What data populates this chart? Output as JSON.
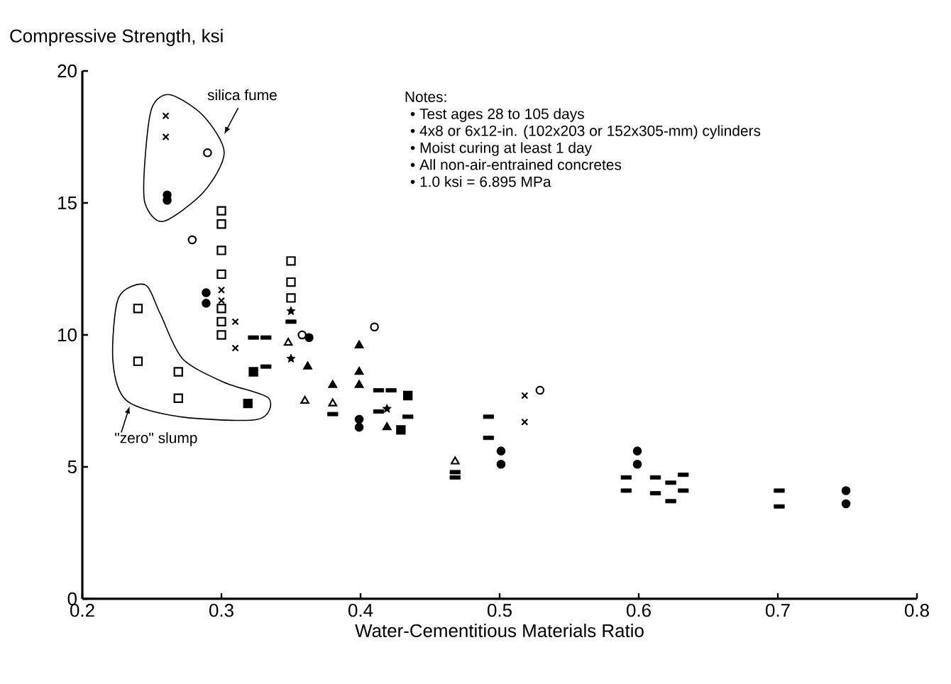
{
  "chart_data": {
    "type": "scatter",
    "xlabel": "Water-Cementitious Materials Ratio",
    "ylabel": "Compressive Strength, ksi",
    "xlim": [
      0.2,
      0.8
    ],
    "xticks": [
      0.2,
      0.3,
      0.4,
      0.5,
      0.6,
      0.7,
      0.8
    ],
    "ylim": [
      0,
      20
    ],
    "yticks": [
      0,
      5,
      10,
      15,
      20
    ],
    "annotations": [
      "silica fume",
      "\"zero\" slump",
      "Notes:",
      "• Test ages 28 to 105 days",
      "• 4x8 or 6x12-in. (102x203 or 152x305-mm) cylinders",
      "• Moist curing at least 1 day",
      "• All non-air-entrained concretes",
      "• 1.0 ksi = 6.895 MPa"
    ],
    "series": [
      {
        "marker": "circle",
        "color": "#000000",
        "x": [
          0.261,
          0.261,
          0.289,
          0.289,
          0.363,
          0.399,
          0.399,
          0.501,
          0.501,
          0.599,
          0.599,
          0.749,
          0.749
        ],
        "values": [
          15.1,
          15.3,
          11.6,
          11.2,
          9.9,
          6.8,
          6.5,
          5.6,
          5.1,
          5.6,
          5.1,
          4.1,
          3.6
        ]
      },
      {
        "marker": "circle",
        "color": "#000000",
        "x": [
          0.29,
          0.279,
          0.358,
          0.41,
          0.529
        ],
        "values": [
          16.9,
          13.6,
          10.0,
          10.3,
          7.9
        ]
      },
      {
        "marker": "square",
        "color": "#000000",
        "x": [
          0.3,
          0.3,
          0.3,
          0.3,
          0.3,
          0.3,
          0.3,
          0.35,
          0.35,
          0.35,
          0.24,
          0.24,
          0.269,
          0.269
        ],
        "values": [
          14.7,
          14.2,
          13.2,
          12.3,
          11.0,
          10.5,
          10.0,
          12.8,
          12.0,
          11.4,
          11.0,
          9.0,
          8.6,
          7.6
        ]
      },
      {
        "marker": "square",
        "color": "#000000",
        "x": [
          0.323,
          0.319,
          0.434,
          0.429
        ],
        "values": [
          8.6,
          7.4,
          7.7,
          6.4
        ]
      },
      {
        "marker": "triangle",
        "color": "#000000",
        "x": [
          0.362,
          0.38,
          0.399,
          0.399,
          0.399,
          0.419
        ],
        "values": [
          8.8,
          8.1,
          9.6,
          8.6,
          8.1,
          6.5
        ]
      },
      {
        "marker": "triangle",
        "color": "#000000",
        "x": [
          0.348,
          0.36,
          0.38,
          0.468
        ],
        "values": [
          9.7,
          7.5,
          7.4,
          5.2
        ]
      },
      {
        "marker": "cross",
        "color": "#000000",
        "x": [
          0.26,
          0.26,
          0.3,
          0.3,
          0.31,
          0.31,
          0.518,
          0.518
        ],
        "values": [
          18.3,
          17.5,
          11.7,
          11.3,
          10.5,
          9.5,
          7.7,
          6.7
        ]
      },
      {
        "color": "#000000",
        "x": [
          0.323,
          0.332,
          0.332,
          0.35,
          0.38,
          0.413,
          0.422,
          0.413,
          0.434,
          0.468,
          0.468,
          0.492,
          0.492,
          0.591,
          0.591,
          0.612,
          0.612,
          0.623,
          0.623,
          0.632,
          0.632,
          0.701,
          0.701
        ],
        "values": [
          9.9,
          9.9,
          8.8,
          10.5,
          7.0,
          7.9,
          7.9,
          7.1,
          6.9,
          4.8,
          4.6,
          6.9,
          6.1,
          4.6,
          4.1,
          4.6,
          4.0,
          4.4,
          3.7,
          4.7,
          4.1,
          4.1,
          3.5
        ]
      },
      {
        "marker": "star",
        "color": "#000000",
        "x": [
          0.35,
          0.35,
          0.419
        ],
        "values": [
          10.9,
          9.1,
          7.2
        ]
      }
    ]
  }
}
